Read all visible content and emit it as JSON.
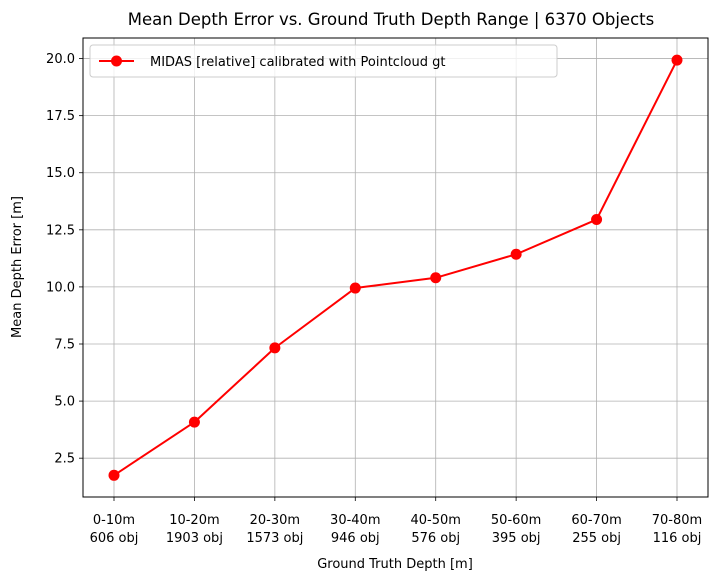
{
  "chart_data": {
    "type": "line",
    "title": "Mean Depth Error vs. Ground Truth Depth Range | 6370 Objects",
    "xlabel": "Ground Truth Depth [m]",
    "ylabel": "Mean Depth Error [m]",
    "categories": [
      [
        "0-10m",
        "606 obj"
      ],
      [
        "10-20m",
        "1903 obj"
      ],
      [
        "20-30m",
        "1573 obj"
      ],
      [
        "30-40m",
        "946 obj"
      ],
      [
        "40-50m",
        "576 obj"
      ],
      [
        "50-60m",
        "395 obj"
      ],
      [
        "60-70m",
        "255 obj"
      ],
      [
        "70-80m",
        "116 obj"
      ]
    ],
    "series": [
      {
        "name": "MIDAS [relative] calibrated with Pointcloud gt",
        "color": "#ff0000",
        "marker": "circle",
        "values": [
          1.75,
          4.08,
          7.33,
          9.95,
          10.4,
          11.43,
          12.95,
          19.93
        ]
      }
    ],
    "ylim": [
      0.8,
      20.9
    ],
    "yticks": [
      2.5,
      5.0,
      7.5,
      10.0,
      12.5,
      15.0,
      17.5,
      20.0
    ],
    "grid": true,
    "legend_position": "upper left"
  }
}
